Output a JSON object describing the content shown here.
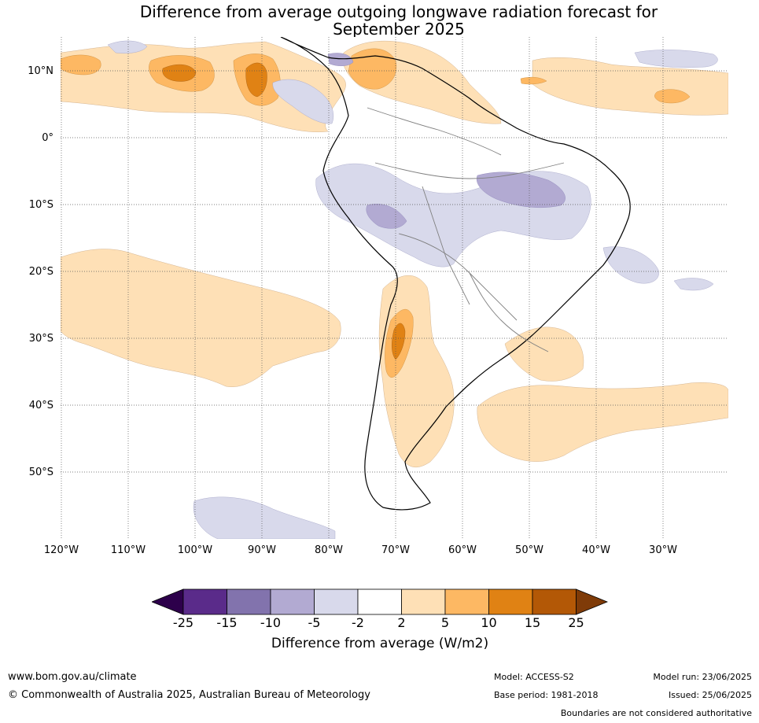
{
  "title_line1": "Difference from average outgoing longwave radiation forecast for",
  "title_line2": "September 2025",
  "map": {
    "lat_labels": [
      "10°N",
      "0°",
      "10°S",
      "20°S",
      "30°S",
      "40°S",
      "50°S"
    ],
    "lon_labels": [
      "120°W",
      "110°W",
      "100°W",
      "90°W",
      "80°W",
      "70°W",
      "60°W",
      "50°W",
      "40°W",
      "30°W"
    ]
  },
  "colorbar": {
    "ticks": [
      "-25",
      "-15",
      "-10",
      "-5",
      "-2",
      "2",
      "5",
      "10",
      "15",
      "25"
    ],
    "label": "Difference from average (W/m2)",
    "colors": {
      "below_min": "#2d004b",
      "lt_-15": "#5a2b8a",
      "-15_-10": "#8273ad",
      "-10_-5": "#b2aad2",
      "-5_-2": "#d8d9eb",
      "-2_2": "#ffffff",
      "2_5": "#fee0b6",
      "5_10": "#fdb863",
      "10_15": "#e08214",
      "15_25": "#b35806",
      "above_max": "#7f3b08"
    }
  },
  "footer": {
    "website": "www.bom.gov.au/climate",
    "copyright": "© Commonwealth of Australia 2025, Australian Bureau of Meteorology",
    "model": "Model: ACCESS-S2",
    "base_period": "Base period: 1981-2018",
    "model_run": "Model run: 23/06/2025",
    "issued": "Issued: 25/06/2025",
    "disclaimer": "Boundaries are not considered authoritative"
  }
}
